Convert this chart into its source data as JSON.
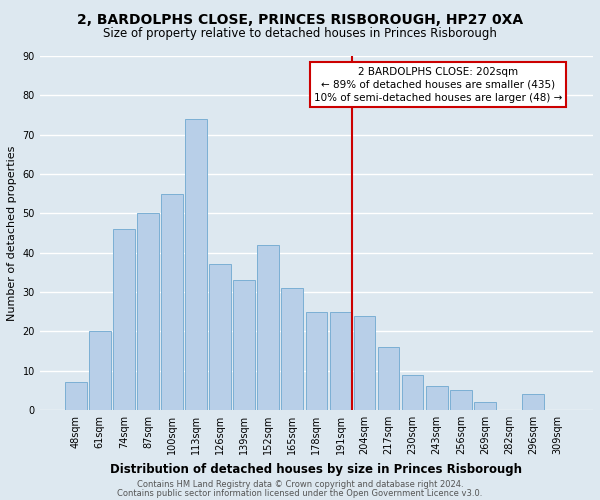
{
  "title": "2, BARDOLPHS CLOSE, PRINCES RISBOROUGH, HP27 0XA",
  "subtitle": "Size of property relative to detached houses in Princes Risborough",
  "xlabel": "Distribution of detached houses by size in Princes Risborough",
  "ylabel": "Number of detached properties",
  "bar_labels": [
    "48sqm",
    "61sqm",
    "74sqm",
    "87sqm",
    "100sqm",
    "113sqm",
    "126sqm",
    "139sqm",
    "152sqm",
    "165sqm",
    "178sqm",
    "191sqm",
    "204sqm",
    "217sqm",
    "230sqm",
    "243sqm",
    "256sqm",
    "269sqm",
    "282sqm",
    "296sqm",
    "309sqm"
  ],
  "bar_values": [
    7,
    20,
    46,
    50,
    55,
    74,
    37,
    33,
    42,
    31,
    25,
    25,
    24,
    16,
    9,
    6,
    5,
    2,
    0,
    4,
    0
  ],
  "bar_color": "#b8cfe8",
  "bar_edge_color": "#7bafd4",
  "background_color": "#dde8f0",
  "grid_color": "#ffffff",
  "vline_color": "#cc0000",
  "annotation_text": "2 BARDOLPHS CLOSE: 202sqm\n← 89% of detached houses are smaller (435)\n10% of semi-detached houses are larger (48) →",
  "annotation_box_color": "#ffffff",
  "annotation_box_edge": "#cc0000",
  "ylim": [
    0,
    90
  ],
  "yticks": [
    0,
    10,
    20,
    30,
    40,
    50,
    60,
    70,
    80,
    90
  ],
  "footer1": "Contains HM Land Registry data © Crown copyright and database right 2024.",
  "footer2": "Contains public sector information licensed under the Open Government Licence v3.0.",
  "title_fontsize": 10,
  "subtitle_fontsize": 8.5,
  "xlabel_fontsize": 8.5,
  "ylabel_fontsize": 8,
  "tick_fontsize": 7,
  "annotation_fontsize": 7.5,
  "footer_fontsize": 6
}
